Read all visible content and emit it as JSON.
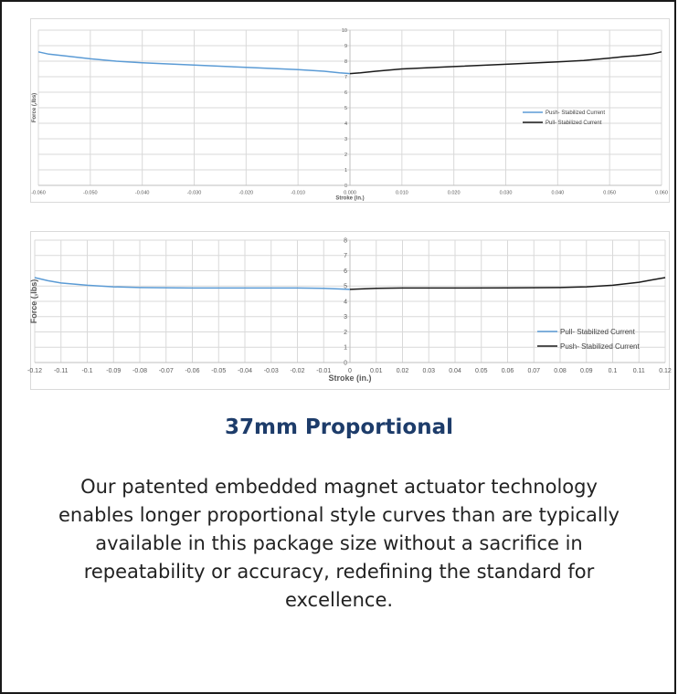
{
  "chart_data": [
    {
      "type": "line",
      "title": "",
      "xlabel": "Stroke (in.)",
      "ylabel": "Force (,lbs)",
      "xlim": [
        -0.06,
        0.06
      ],
      "ylim": [
        0,
        10
      ],
      "x_ticks": [
        "-0.060",
        "-0.050",
        "-0.040",
        "-0.030",
        "-0.020",
        "-0.010",
        "0.000",
        "0.010",
        "0.020",
        "0.030",
        "0.040",
        "0.050",
        "0.060"
      ],
      "y_ticks": [
        "0",
        "1",
        "2",
        "3",
        "4",
        "5",
        "6",
        "7",
        "8",
        "9",
        "10"
      ],
      "grid": true,
      "legend_position": "right",
      "series": [
        {
          "name": "Push- Stabilized Current",
          "color": "#5b9bd5",
          "x": [
            -0.06,
            -0.058,
            -0.055,
            -0.05,
            -0.045,
            -0.04,
            -0.03,
            -0.02,
            -0.01,
            -0.005,
            -0.002,
            0.0
          ],
          "y": [
            8.6,
            8.45,
            8.35,
            8.15,
            8.0,
            7.9,
            7.75,
            7.6,
            7.45,
            7.35,
            7.25,
            7.2
          ]
        },
        {
          "name": "Pull- Stabilized Current",
          "color": "#1a1a1a",
          "x": [
            0.0,
            0.002,
            0.005,
            0.01,
            0.02,
            0.03,
            0.04,
            0.045,
            0.05,
            0.053,
            0.055,
            0.058,
            0.06
          ],
          "y": [
            7.2,
            7.25,
            7.35,
            7.5,
            7.65,
            7.8,
            7.95,
            8.05,
            8.2,
            8.3,
            8.35,
            8.45,
            8.6
          ]
        }
      ]
    },
    {
      "type": "line",
      "title": "",
      "xlabel": "Stroke (in.)",
      "ylabel": "Force (,lbs)",
      "xlim": [
        -0.12,
        0.12
      ],
      "ylim": [
        0,
        8
      ],
      "x_ticks": [
        "-0.12",
        "-0.11",
        "-0.1",
        "-0.09",
        "-0.08",
        "-0.07",
        "-0.06",
        "-0.05",
        "-0.04",
        "-0.03",
        "-0.02",
        "-0.01",
        "0",
        "0.01",
        "0.02",
        "0.03",
        "0.04",
        "0.05",
        "0.06",
        "0.07",
        "0.08",
        "0.09",
        "0.1",
        "0.11",
        "0.12"
      ],
      "y_ticks": [
        "0",
        "1",
        "2",
        "3",
        "4",
        "5",
        "6",
        "7",
        "8"
      ],
      "grid": true,
      "legend_position": "right",
      "series": [
        {
          "name": "Pull- Stabilized Current",
          "color": "#5b9bd5",
          "x": [
            -0.12,
            -0.115,
            -0.11,
            -0.1,
            -0.09,
            -0.08,
            -0.06,
            -0.04,
            -0.02,
            -0.01,
            0.0
          ],
          "y": [
            5.55,
            5.35,
            5.2,
            5.05,
            4.95,
            4.9,
            4.87,
            4.87,
            4.87,
            4.85,
            4.78
          ]
        },
        {
          "name": "Push- Stabilized Current",
          "color": "#1a1a1a",
          "x": [
            0.0,
            0.01,
            0.02,
            0.04,
            0.06,
            0.08,
            0.09,
            0.1,
            0.105,
            0.11,
            0.115,
            0.12
          ],
          "y": [
            4.78,
            4.85,
            4.87,
            4.87,
            4.88,
            4.9,
            4.95,
            5.05,
            5.15,
            5.25,
            5.4,
            5.55
          ]
        }
      ]
    }
  ],
  "heading": "37mm Proportional",
  "description": "Our patented embedded magnet actuator technology enables longer proportional style curves than are typically available in this package size without a sacrifice in repeatability or accuracy, redefining the standard for excellence."
}
